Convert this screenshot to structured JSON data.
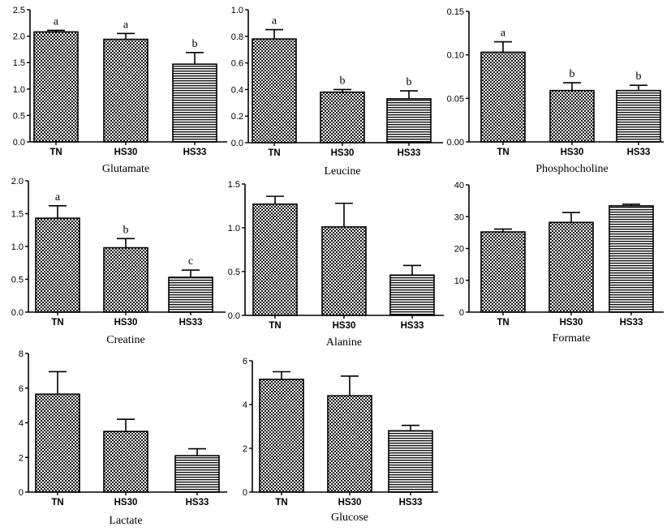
{
  "chart_data": [
    {
      "type": "bar",
      "title": "Glutamate",
      "categories": [
        "TN",
        "HS30",
        "HS33"
      ],
      "values": [
        2.08,
        1.94,
        1.47
      ],
      "errors": [
        0.03,
        0.11,
        0.22
      ],
      "letters": [
        "a",
        "a",
        "b"
      ],
      "ylim": [
        0,
        2.5
      ],
      "yticks": [
        0,
        0.5,
        1.0,
        1.5,
        2.0,
        2.5
      ],
      "ytick_labels": [
        "0.0",
        "0.5",
        "1.0",
        "1.5",
        "2.0",
        "2.5"
      ]
    },
    {
      "type": "bar",
      "title": "Leucine",
      "categories": [
        "TN",
        "HS30",
        "HS33"
      ],
      "values": [
        0.78,
        0.38,
        0.33
      ],
      "errors": [
        0.07,
        0.02,
        0.06
      ],
      "letters": [
        "a",
        "b",
        "b"
      ],
      "ylim": [
        0,
        1.0
      ],
      "yticks": [
        0,
        0.2,
        0.4,
        0.6,
        0.8,
        1.0
      ],
      "ytick_labels": [
        "0.0",
        "0.2",
        "0.4",
        "0.6",
        "0.8",
        "1.0"
      ]
    },
    {
      "type": "bar",
      "title": "Phosphocholine",
      "categories": [
        "TN",
        "HS30",
        "HS33"
      ],
      "values": [
        0.103,
        0.059,
        0.059
      ],
      "errors": [
        0.012,
        0.009,
        0.006
      ],
      "letters": [
        "a",
        "b",
        "b"
      ],
      "ylim": [
        0,
        0.15
      ],
      "yticks": [
        0,
        0.05,
        0.1,
        0.15
      ],
      "ytick_labels": [
        "0.00",
        "0.05",
        "0.10",
        "0.15"
      ]
    },
    {
      "type": "bar",
      "title": "Creatine",
      "categories": [
        "TN",
        "HS30",
        "HS33"
      ],
      "values": [
        1.43,
        0.98,
        0.53
      ],
      "errors": [
        0.19,
        0.14,
        0.11
      ],
      "letters": [
        "a",
        "b",
        "c"
      ],
      "ylim": [
        0,
        2.0
      ],
      "yticks": [
        0,
        0.5,
        1.0,
        1.5,
        2.0
      ],
      "ytick_labels": [
        "0.0",
        "0.5",
        "1.0",
        "1.5",
        "2.0"
      ]
    },
    {
      "type": "bar",
      "title": "Alanine",
      "categories": [
        "TN",
        "HS30",
        "HS33"
      ],
      "values": [
        1.27,
        1.01,
        0.46
      ],
      "errors": [
        0.09,
        0.27,
        0.11
      ],
      "letters": [],
      "ylim": [
        0,
        1.5
      ],
      "yticks": [
        0,
        0.5,
        1.0,
        1.5
      ],
      "ytick_labels": [
        "0.0",
        "0.5",
        "1.0",
        "1.5"
      ]
    },
    {
      "type": "bar",
      "title": "Formate",
      "categories": [
        "TN",
        "HS30",
        "HS33"
      ],
      "values": [
        25.2,
        28.2,
        33.4
      ],
      "errors": [
        0.9,
        3.1,
        0.5
      ],
      "letters": [],
      "ylim": [
        0,
        40
      ],
      "yticks": [
        0,
        10,
        20,
        30,
        40
      ],
      "ytick_labels": [
        "0",
        "10",
        "20",
        "30",
        "40"
      ]
    },
    {
      "type": "bar",
      "title": "Lactate",
      "categories": [
        "TN",
        "HS30",
        "HS33"
      ],
      "values": [
        5.65,
        3.5,
        2.1
      ],
      "errors": [
        1.3,
        0.7,
        0.4
      ],
      "letters": [],
      "ylim": [
        0,
        8
      ],
      "yticks": [
        0,
        2,
        4,
        6,
        8
      ],
      "ytick_labels": [
        "0",
        "2",
        "4",
        "6",
        "8"
      ]
    },
    {
      "type": "bar",
      "title": "Glucose",
      "categories": [
        "TN",
        "HS30",
        "HS33"
      ],
      "values": [
        5.15,
        4.4,
        2.8
      ],
      "errors": [
        0.35,
        0.9,
        0.25
      ],
      "letters": [],
      "ylim": [
        0,
        6
      ],
      "yticks": [
        0,
        2,
        4,
        6
      ],
      "ytick_labels": [
        "0",
        "2",
        "4",
        "6"
      ]
    }
  ]
}
